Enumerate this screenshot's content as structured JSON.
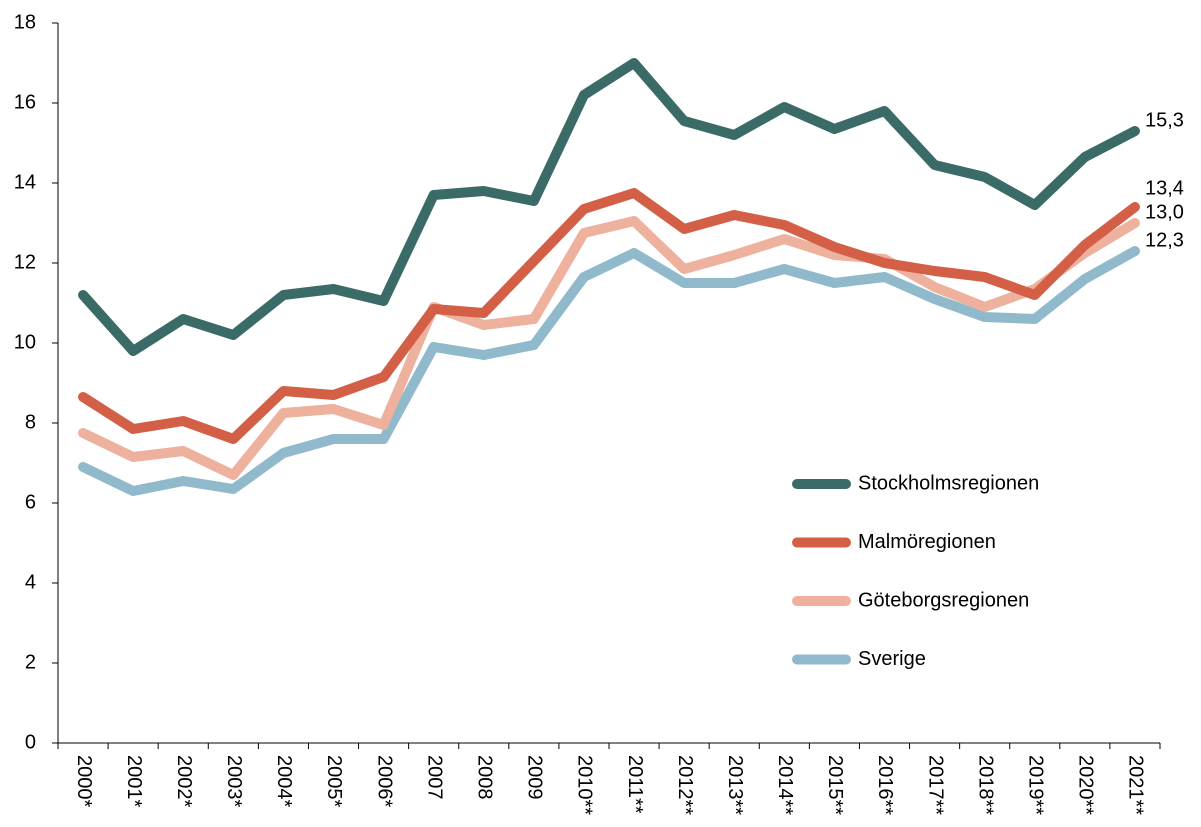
{
  "chart_data": {
    "type": "line",
    "categories": [
      "2000*",
      "2001*",
      "2002*",
      "2003*",
      "2004*",
      "2005*",
      "2006*",
      "2007",
      "2008",
      "2009",
      "2010**",
      "2011**",
      "2012**",
      "2013**",
      "2014**",
      "2015**",
      "2016**",
      "2017**",
      "2018**",
      "2019**",
      "2020**",
      "2021**"
    ],
    "series": [
      {
        "name": "Stockholmsregionen",
        "color": "#3b6b66",
        "values": [
          11.2,
          9.8,
          10.6,
          10.2,
          11.2,
          11.35,
          11.05,
          13.7,
          13.8,
          13.55,
          16.2,
          17.0,
          15.55,
          15.2,
          15.9,
          15.35,
          15.8,
          14.45,
          14.15,
          13.45,
          14.65,
          15.3
        ],
        "value_labels": [
          null,
          null,
          null,
          null,
          null,
          null,
          null,
          null,
          null,
          null,
          null,
          null,
          null,
          null,
          null,
          null,
          null,
          null,
          null,
          null,
          null,
          "15,3"
        ]
      },
      {
        "name": "Malmöregionen",
        "color": "#d45f47",
        "values": [
          8.65,
          7.85,
          8.05,
          7.6,
          8.8,
          8.7,
          9.15,
          10.85,
          10.75,
          12.05,
          13.35,
          13.75,
          12.85,
          13.2,
          12.95,
          12.4,
          12.0,
          11.8,
          11.65,
          11.2,
          12.45,
          13.4
        ],
        "value_labels": [
          null,
          null,
          null,
          null,
          null,
          null,
          null,
          null,
          null,
          null,
          null,
          null,
          null,
          null,
          null,
          null,
          null,
          null,
          null,
          null,
          null,
          "13,4"
        ]
      },
      {
        "name": "Göteborgsregionen",
        "color": "#eeb19e",
        "values": [
          7.75,
          7.15,
          7.3,
          6.7,
          8.25,
          8.35,
          7.95,
          10.9,
          10.45,
          10.6,
          12.75,
          13.05,
          11.85,
          12.2,
          12.6,
          12.2,
          12.1,
          11.4,
          10.9,
          11.35,
          12.25,
          13.0
        ],
        "value_labels": [
          null,
          null,
          null,
          null,
          null,
          null,
          null,
          null,
          null,
          null,
          null,
          null,
          null,
          null,
          null,
          null,
          null,
          null,
          null,
          null,
          null,
          "13,0"
        ]
      },
      {
        "name": "Sverige",
        "color": "#90b9cc",
        "values": [
          6.9,
          6.3,
          6.55,
          6.35,
          7.25,
          7.6,
          7.6,
          9.9,
          9.7,
          9.95,
          11.65,
          12.25,
          11.5,
          11.5,
          11.85,
          11.5,
          11.65,
          11.1,
          10.65,
          10.6,
          11.6,
          12.3
        ],
        "value_labels": [
          null,
          null,
          null,
          null,
          null,
          null,
          null,
          null,
          null,
          null,
          null,
          null,
          null,
          null,
          null,
          null,
          null,
          null,
          null,
          null,
          null,
          "12,3"
        ]
      }
    ],
    "ylim": [
      0,
      18
    ],
    "yticks": [
      0,
      2,
      4,
      6,
      8,
      10,
      12,
      14,
      16,
      18
    ],
    "grid": false,
    "legend": "right"
  }
}
